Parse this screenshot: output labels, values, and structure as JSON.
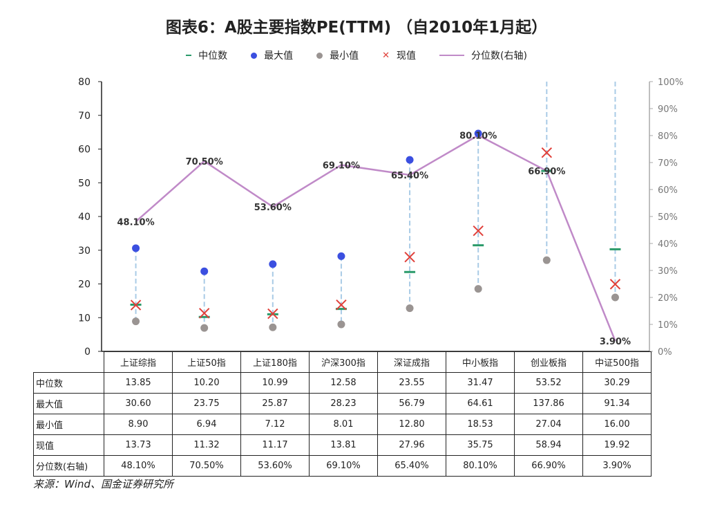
{
  "title": "图表6：A股主要指数PE(TTM) （自2010年1月起）",
  "legend": [
    {
      "label": "中位数",
      "marker": "dash",
      "color": "#2a9a6a"
    },
    {
      "label": "最大值",
      "marker": "dot",
      "color": "#3b4fe0"
    },
    {
      "label": "最小值",
      "marker": "dot",
      "color": "#9a9492"
    },
    {
      "label": "现值",
      "marker": "x",
      "color": "#e0403a"
    },
    {
      "label": "分位数(右轴)",
      "marker": "line",
      "color": "#c08ac8"
    }
  ],
  "chart_data": {
    "type": "line",
    "categories": [
      "上证综指",
      "上证50指",
      "上证180指",
      "沪深300指",
      "深证成指",
      "中小板指",
      "创业板指",
      "中证500指"
    ],
    "series": [
      {
        "name": "中位数",
        "values": [
          13.85,
          10.2,
          10.99,
          12.58,
          23.55,
          31.47,
          53.52,
          30.29
        ]
      },
      {
        "name": "最大值",
        "values": [
          30.6,
          23.75,
          25.87,
          28.23,
          56.79,
          64.61,
          137.86,
          91.34
        ]
      },
      {
        "name": "最小值",
        "values": [
          8.9,
          6.94,
          7.12,
          8.01,
          12.8,
          18.53,
          27.04,
          16.0
        ]
      },
      {
        "name": "现值",
        "values": [
          13.73,
          11.32,
          11.17,
          13.81,
          27.96,
          35.75,
          58.94,
          19.92
        ]
      },
      {
        "name": "分位数(右轴)",
        "axis": "right",
        "values": [
          48.1,
          70.5,
          53.6,
          69.1,
          65.4,
          80.1,
          66.9,
          3.9
        ]
      }
    ],
    "ylim": [
      0,
      80
    ],
    "yticks": [
      "0",
      "10",
      "20",
      "30",
      "40",
      "50",
      "60",
      "70",
      "80"
    ],
    "y2lim": [
      0,
      100
    ],
    "y2ticks": [
      "0%",
      "10%",
      "20%",
      "30%",
      "40%",
      "50%",
      "60%",
      "70%",
      "80%",
      "90%",
      "100%"
    ],
    "data_labels": [
      "48.10%",
      "70.50%",
      "53.60%",
      "69.10%",
      "65.40%",
      "80.10%",
      "66.90%",
      "3.90%"
    ],
    "legend_position": "top",
    "grid": false
  },
  "table": {
    "rows": [
      {
        "label": "中位数",
        "values": [
          "13.85",
          "10.20",
          "10.99",
          "12.58",
          "23.55",
          "31.47",
          "53.52",
          "30.29"
        ]
      },
      {
        "label": "最大值",
        "values": [
          "30.60",
          "23.75",
          "25.87",
          "28.23",
          "56.79",
          "64.61",
          "137.86",
          "91.34"
        ]
      },
      {
        "label": "最小值",
        "values": [
          "8.90",
          "6.94",
          "7.12",
          "8.01",
          "12.80",
          "18.53",
          "27.04",
          "16.00"
        ]
      },
      {
        "label": "现值",
        "values": [
          "13.73",
          "11.32",
          "11.17",
          "13.81",
          "27.96",
          "35.75",
          "58.94",
          "19.92"
        ]
      },
      {
        "label": "分位数(右轴)",
        "values": [
          "48.10%",
          "70.50%",
          "53.60%",
          "69.10%",
          "65.40%",
          "80.10%",
          "66.90%",
          "3.90%"
        ]
      }
    ]
  },
  "source": "来源：Wind、国金证券研究所"
}
